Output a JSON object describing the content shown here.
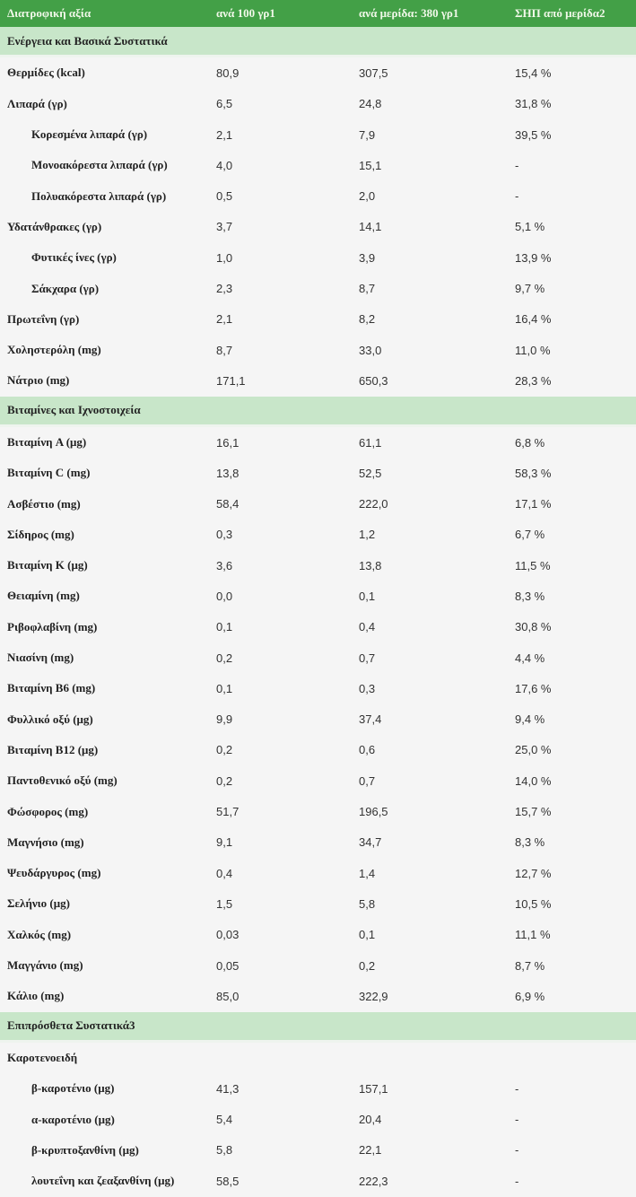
{
  "header": [
    "Διατροφική αξία",
    "ανά 100 γρ1",
    "ανά μερίδα: 380 γρ1",
    "ΣΗΠ από μερίδα2"
  ],
  "colors": {
    "header_bg": "#43a047",
    "section_bg": "#c8e6c9",
    "body_bg": "#f5f5f5"
  },
  "rows": [
    {
      "type": "section",
      "label": "Ενέργεια και Βασικά Συστατικά"
    },
    {
      "type": "data",
      "label": "Θερμίδες (kcal)",
      "per100": "80,9",
      "perServing": "307,5",
      "dv": "15,4 %"
    },
    {
      "type": "data",
      "label": "Λιπαρά (γρ)",
      "per100": "6,5",
      "perServing": "24,8",
      "dv": "31,8 %"
    },
    {
      "type": "data",
      "indent": true,
      "label": "Κορεσμένα λιπαρά (γρ)",
      "per100": "2,1",
      "perServing": "7,9",
      "dv": "39,5 %"
    },
    {
      "type": "data",
      "indent": true,
      "label": "Μονοακόρεστα λιπαρά (γρ)",
      "per100": "4,0",
      "perServing": "15,1",
      "dv": "-"
    },
    {
      "type": "data",
      "indent": true,
      "label": "Πολυακόρεστα λιπαρά (γρ)",
      "per100": "0,5",
      "perServing": "2,0",
      "dv": "-"
    },
    {
      "type": "data",
      "label": "Υδατάνθρακες (γρ)",
      "per100": "3,7",
      "perServing": "14,1",
      "dv": "5,1 %"
    },
    {
      "type": "data",
      "indent": true,
      "label": "Φυτικές ίνες (γρ)",
      "per100": "1,0",
      "perServing": "3,9",
      "dv": "13,9 %"
    },
    {
      "type": "data",
      "indent": true,
      "label": "Σάκχαρα (γρ)",
      "per100": "2,3",
      "perServing": "8,7",
      "dv": "9,7 %"
    },
    {
      "type": "data",
      "label": "Πρωτεΐνη (γρ)",
      "per100": "2,1",
      "perServing": "8,2",
      "dv": "16,4 %"
    },
    {
      "type": "data",
      "label": "Χοληστερόλη (mg)",
      "per100": "8,7",
      "perServing": "33,0",
      "dv": "11,0 %"
    },
    {
      "type": "data",
      "label": "Νάτριο (mg)",
      "per100": "171,1",
      "perServing": "650,3",
      "dv": "28,3 %"
    },
    {
      "type": "section",
      "label": "Βιταμίνες και Ιχνοστοιχεία"
    },
    {
      "type": "data",
      "label": "Βιταμίνη A (μg)",
      "per100": "16,1",
      "perServing": "61,1",
      "dv": "6,8 %"
    },
    {
      "type": "data",
      "label": "Βιταμίνη C (mg)",
      "per100": "13,8",
      "perServing": "52,5",
      "dv": "58,3 %"
    },
    {
      "type": "data",
      "label": "Ασβέστιο (mg)",
      "per100": "58,4",
      "perServing": "222,0",
      "dv": "17,1 %"
    },
    {
      "type": "data",
      "label": "Σίδηρος (mg)",
      "per100": "0,3",
      "perServing": "1,2",
      "dv": "6,7 %"
    },
    {
      "type": "data",
      "label": "Βιταμίνη K (μg)",
      "per100": "3,6",
      "perServing": "13,8",
      "dv": "11,5 %"
    },
    {
      "type": "data",
      "label": "Θειαμίνη (mg)",
      "per100": "0,0",
      "perServing": "0,1",
      "dv": "8,3 %"
    },
    {
      "type": "data",
      "label": "Ριβοφλαβίνη (mg)",
      "per100": "0,1",
      "perServing": "0,4",
      "dv": "30,8 %"
    },
    {
      "type": "data",
      "label": "Νιασίνη (mg)",
      "per100": "0,2",
      "perServing": "0,7",
      "dv": "4,4 %"
    },
    {
      "type": "data",
      "label": "Βιταμίνη B6 (mg)",
      "per100": "0,1",
      "perServing": "0,3",
      "dv": "17,6 %"
    },
    {
      "type": "data",
      "label": "Φυλλικό οξύ (μg)",
      "per100": "9,9",
      "perServing": "37,4",
      "dv": "9,4 %"
    },
    {
      "type": "data",
      "label": "Βιταμίνη B12 (μg)",
      "per100": "0,2",
      "perServing": "0,6",
      "dv": "25,0 %"
    },
    {
      "type": "data",
      "label": "Παντοθενικό οξύ (mg)",
      "per100": "0,2",
      "perServing": "0,7",
      "dv": "14,0 %"
    },
    {
      "type": "data",
      "label": "Φώσφορος (mg)",
      "per100": "51,7",
      "perServing": "196,5",
      "dv": "15,7 %"
    },
    {
      "type": "data",
      "label": "Μαγνήσιο (mg)",
      "per100": "9,1",
      "perServing": "34,7",
      "dv": "8,3 %"
    },
    {
      "type": "data",
      "label": "Ψευδάργυρος (mg)",
      "per100": "0,4",
      "perServing": "1,4",
      "dv": "12,7 %"
    },
    {
      "type": "data",
      "label": "Σελήνιο (μg)",
      "per100": "1,5",
      "perServing": "5,8",
      "dv": "10,5 %"
    },
    {
      "type": "data",
      "label": "Χαλκός (mg)",
      "per100": "0,03",
      "perServing": "0,1",
      "dv": "11,1 %"
    },
    {
      "type": "data",
      "label": "Μαγγάνιο (mg)",
      "per100": "0,05",
      "perServing": "0,2",
      "dv": "8,7 %"
    },
    {
      "type": "data",
      "label": "Κάλιο (mg)",
      "per100": "85,0",
      "perServing": "322,9",
      "dv": "6,9 %"
    },
    {
      "type": "section",
      "label": "Επιπρόσθετα Συστατικά3"
    },
    {
      "type": "data",
      "label": "Καροτενοειδή",
      "per100": "",
      "perServing": "",
      "dv": ""
    },
    {
      "type": "data",
      "indent": true,
      "label": "β-καροτένιο (μg)",
      "per100": "41,3",
      "perServing": "157,1",
      "dv": "-"
    },
    {
      "type": "data",
      "indent": true,
      "label": "α-καροτένιο (μg)",
      "per100": "5,4",
      "perServing": "20,4",
      "dv": "-"
    },
    {
      "type": "data",
      "indent": true,
      "label": "β-κρυπτοξανθίνη (μg)",
      "per100": "5,8",
      "perServing": "22,1",
      "dv": "-"
    },
    {
      "type": "data",
      "indent": true,
      "label": "λουτεΐνη και ζεαξανθίνη (μg)",
      "per100": "58,5",
      "perServing": "222,3",
      "dv": "-"
    }
  ]
}
